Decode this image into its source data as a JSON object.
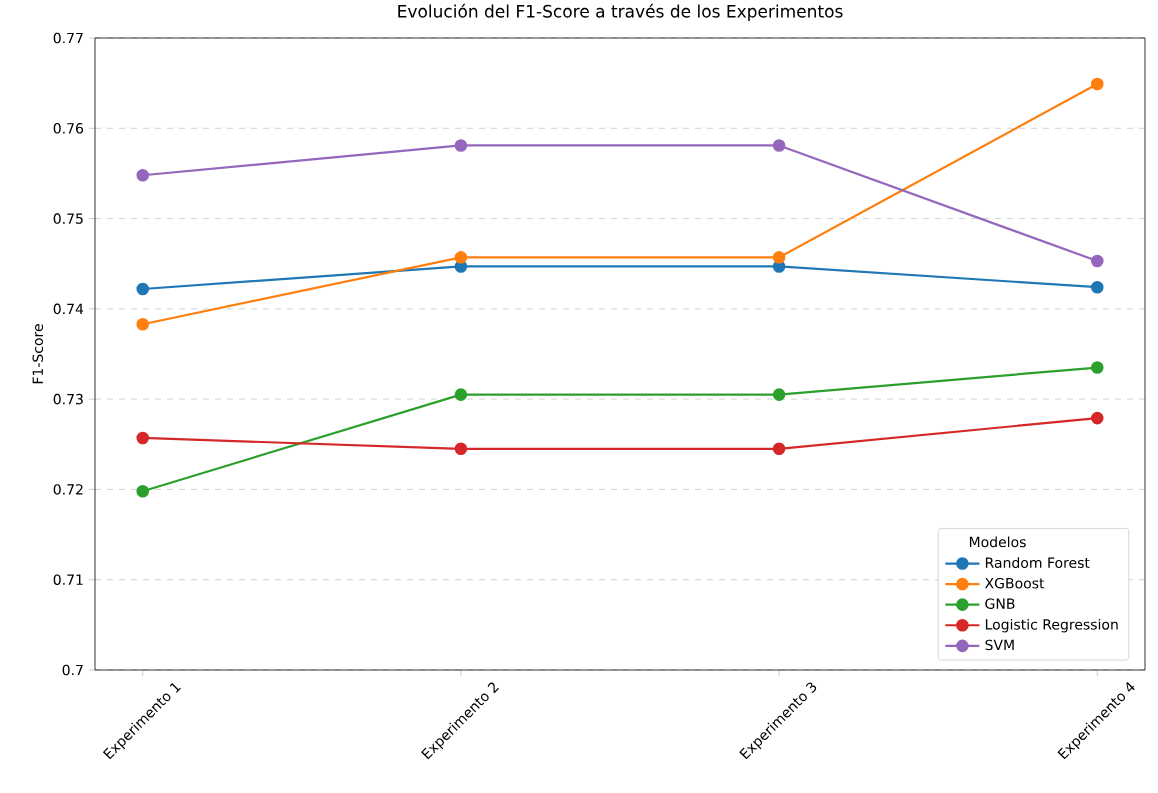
{
  "chart_data": {
    "type": "line",
    "title": "Evolución del F1-Score a través de los Experimentos",
    "ylabel": "F1-Score",
    "legend_title": "Modelos",
    "categories": [
      "Experimento 1",
      "Experimento 2",
      "Experimento 3",
      "Experimento 4"
    ],
    "series": [
      {
        "name": "Random Forest",
        "color": "#1f77b4",
        "values": [
          0.7422,
          0.7447,
          0.7447,
          0.7424
        ]
      },
      {
        "name": "XGBoost",
        "color": "#ff7f0e",
        "values": [
          0.7383,
          0.7457,
          0.7457,
          0.7649
        ]
      },
      {
        "name": "GNB",
        "color": "#2ca02c",
        "values": [
          0.7198,
          0.7305,
          0.7305,
          0.7335
        ]
      },
      {
        "name": "Logistic Regression",
        "color": "#d62728",
        "values": [
          0.7257,
          0.7245,
          0.7245,
          0.7279
        ]
      },
      {
        "name": "SVM",
        "color": "#9467bd",
        "values": [
          0.7548,
          0.7581,
          0.7581,
          0.7453
        ]
      }
    ],
    "ylim": [
      0.7,
      0.77
    ],
    "yticks": [
      0.7,
      0.71,
      0.72,
      0.73,
      0.74,
      0.75,
      0.76,
      0.77
    ],
    "grid": "y",
    "legend": "bottom right",
    "marker": "circle",
    "line_style": "solid"
  }
}
